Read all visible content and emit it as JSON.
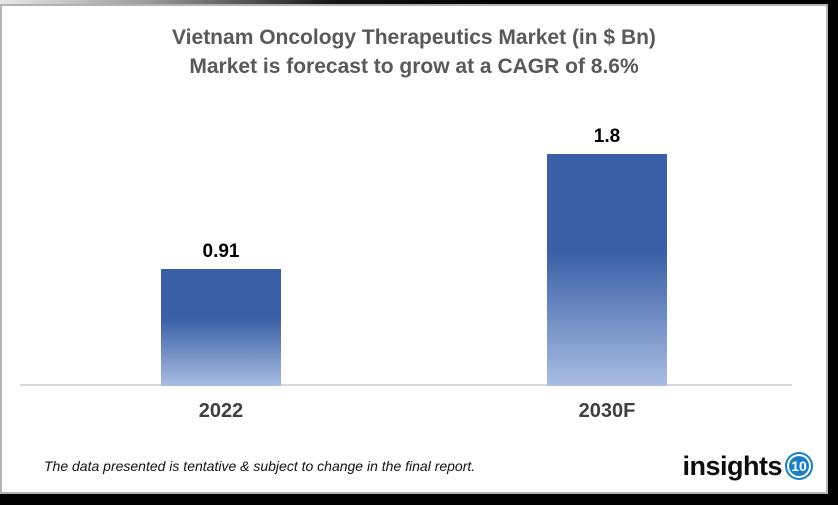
{
  "header": {
    "title_line1": "Vietnam Oncology Therapeutics Market (in $ Bn)",
    "title_line2": "Market is forecast to grow at a CAGR of 8.6%"
  },
  "chart_data": {
    "type": "bar",
    "title": "Vietnam Oncology Therapeutics Market (in $ Bn)",
    "subtitle": "Market is forecast to grow at a CAGR of 8.6%",
    "cagr": "8.6%",
    "categories": [
      "2022",
      "2030F"
    ],
    "values": [
      0.91,
      1.8
    ],
    "value_labels": [
      "0.91",
      "1.8"
    ],
    "xlabel": "",
    "ylabel": "",
    "ylim": [
      0,
      2
    ],
    "grid": false,
    "legend": false,
    "bar_color_top": "#3a5fa6",
    "bar_color_bottom": "#a9bde3",
    "axis_color": "#d9d9d9",
    "title_color": "#595959",
    "label_color": "#000000"
  },
  "footer": {
    "note": "The data presented is tentative & subject to change in the final report.",
    "logo_text": "insights",
    "logo_badge": "10",
    "logo_badge_color": "#1a80c5"
  }
}
